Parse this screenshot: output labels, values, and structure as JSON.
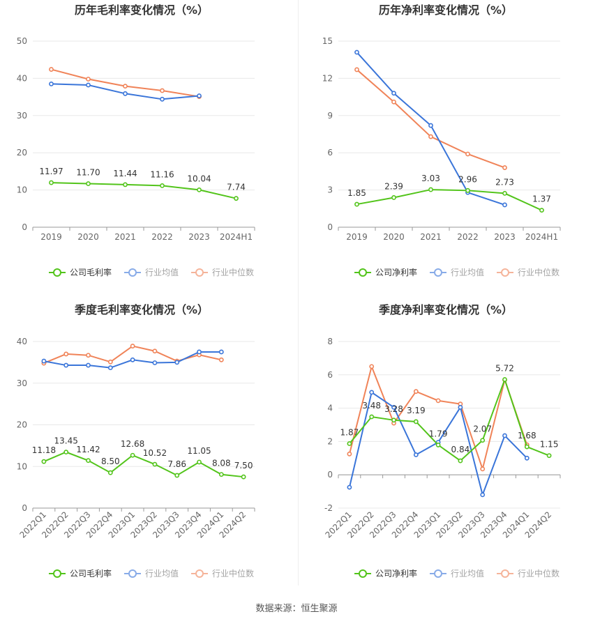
{
  "colors": {
    "company": "#52c41a",
    "avg": "#3a75d9",
    "median": "#f08358",
    "axis_text": "#666666",
    "title": "#333333",
    "grid": "#e8e8e8",
    "label": "#333333"
  },
  "source_text": "数据来源：恒生聚源",
  "chart_data": [
    {
      "type": "line",
      "title": "历年毛利率变化情况（%）",
      "categories": [
        "2019",
        "2020",
        "2021",
        "2022",
        "2023",
        "2024H1"
      ],
      "ylim": [
        0,
        50
      ],
      "yticks": [
        0,
        10,
        20,
        30,
        40,
        50
      ],
      "series": [
        {
          "name": "公司毛利率",
          "key": "company",
          "values": [
            11.97,
            11.7,
            11.44,
            11.16,
            10.04,
            7.74
          ],
          "labels": [
            "11.97",
            "11.70",
            "11.44",
            "11.16",
            "10.04",
            "7.74"
          ]
        },
        {
          "name": "行业均值",
          "key": "avg",
          "values": [
            38.5,
            38.2,
            35.9,
            34.4,
            35.3,
            null
          ]
        },
        {
          "name": "行业中位数",
          "key": "median",
          "values": [
            42.4,
            39.8,
            37.9,
            36.7,
            35.1,
            null
          ]
        }
      ],
      "legend": "bottom"
    },
    {
      "type": "line",
      "title": "历年净利率变化情况（%）",
      "categories": [
        "2019",
        "2020",
        "2021",
        "2022",
        "2023",
        "2024H1"
      ],
      "ylim": [
        0,
        15
      ],
      "yticks": [
        0,
        3,
        6,
        9,
        12,
        15
      ],
      "series": [
        {
          "name": "公司净利率",
          "key": "company",
          "values": [
            1.85,
            2.39,
            3.03,
            2.96,
            2.73,
            1.37
          ],
          "labels": [
            "1.85",
            "2.39",
            "3.03",
            "2.96",
            "2.73",
            "1.37"
          ]
        },
        {
          "name": "行业均值",
          "key": "avg",
          "values": [
            14.1,
            10.8,
            8.2,
            2.8,
            1.8,
            null
          ]
        },
        {
          "name": "行业中位数",
          "key": "median",
          "values": [
            12.7,
            10.1,
            7.3,
            5.9,
            4.8,
            null
          ]
        }
      ],
      "legend": "bottom"
    },
    {
      "type": "line",
      "title": "季度毛利率变化情况（%）",
      "categories": [
        "2022Q1",
        "2022Q2",
        "2022Q3",
        "2022Q4",
        "2023Q1",
        "2023Q2",
        "2023Q3",
        "2023Q4",
        "2024Q1",
        "2024Q2"
      ],
      "ylim": [
        0,
        45
      ],
      "yticks": [
        0,
        10,
        20,
        30,
        40
      ],
      "series": [
        {
          "name": "公司毛利率",
          "key": "company",
          "values": [
            11.18,
            13.45,
            11.42,
            8.5,
            12.68,
            10.52,
            7.86,
            11.05,
            8.08,
            7.5
          ],
          "labels": [
            "11.18",
            "13.45",
            "11.42",
            "8.50",
            "12.68",
            "10.52",
            "7.86",
            "11.05",
            "8.08",
            "7.50"
          ]
        },
        {
          "name": "行业均值",
          "key": "avg",
          "values": [
            35.3,
            34.3,
            34.3,
            33.7,
            35.6,
            34.9,
            35.0,
            37.5,
            37.5,
            null
          ]
        },
        {
          "name": "行业中位数",
          "key": "median",
          "values": [
            34.8,
            37.0,
            36.7,
            35.1,
            38.9,
            37.7,
            35.3,
            36.8,
            35.6,
            null
          ]
        }
      ],
      "legend": "bottom"
    },
    {
      "type": "line",
      "title": "季度净利率变化情况（%）",
      "categories": [
        "2022Q1",
        "2022Q2",
        "2022Q3",
        "2022Q4",
        "2023Q1",
        "2023Q2",
        "2023Q3",
        "2023Q4",
        "2024Q1",
        "2024Q2"
      ],
      "ylim": [
        -2,
        8
      ],
      "yticks": [
        -2,
        0,
        2,
        4,
        6,
        8
      ],
      "series": [
        {
          "name": "公司净利率",
          "key": "company",
          "values": [
            1.87,
            3.48,
            3.28,
            3.19,
            1.79,
            0.84,
            2.07,
            5.72,
            1.68,
            1.15
          ],
          "labels": [
            "1.87",
            "3.48",
            "3.28",
            "3.19",
            "1.79",
            "0.84",
            "2.07",
            "5.72",
            "1.68",
            "1.15"
          ]
        },
        {
          "name": "行业均值",
          "key": "avg",
          "values": [
            -0.75,
            4.95,
            4.05,
            1.2,
            1.95,
            4.05,
            -1.2,
            2.35,
            1.0,
            null
          ]
        },
        {
          "name": "行业中位数",
          "key": "median",
          "values": [
            1.25,
            6.5,
            3.1,
            5.0,
            4.45,
            4.25,
            0.35,
            5.7,
            1.8,
            null
          ]
        }
      ],
      "legend": "bottom"
    }
  ]
}
